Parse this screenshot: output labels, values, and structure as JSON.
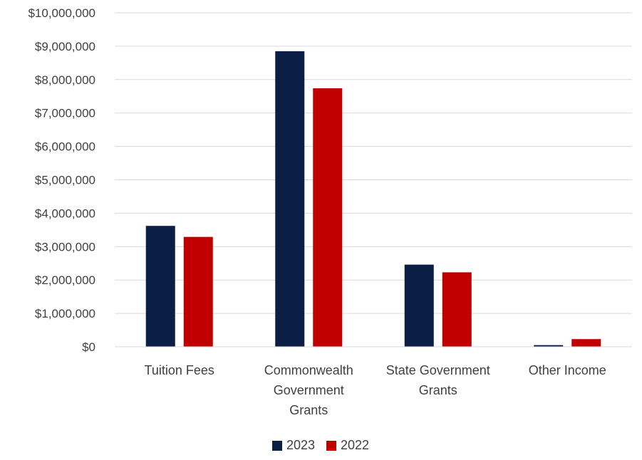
{
  "chart_data": {
    "type": "bar",
    "categories": [
      [
        "Tuition Fees"
      ],
      [
        "Commonwealth",
        "Government",
        "Grants"
      ],
      [
        "State Government",
        "Grants"
      ],
      [
        "Other Income"
      ]
    ],
    "series": [
      {
        "name": "2023",
        "color": "#0b1f45",
        "values": [
          3620000,
          8850000,
          2460000,
          50000
        ]
      },
      {
        "name": "2022",
        "color": "#c00000",
        "values": [
          3290000,
          7740000,
          2230000,
          230000
        ]
      }
    ],
    "ylim": [
      0,
      10000000
    ],
    "yticks": [
      0,
      1000000,
      2000000,
      3000000,
      4000000,
      5000000,
      6000000,
      7000000,
      8000000,
      9000000,
      10000000
    ],
    "ytick_labels": [
      "$0",
      "$1,000,000",
      "$2,000,000",
      "$3,000,000",
      "$4,000,000",
      "$5,000,000",
      "$6,000,000",
      "$7,000,000",
      "$8,000,000",
      "$9,000,000",
      "$10,000,000"
    ],
    "grid": true,
    "legend": "bottom-center",
    "title": "",
    "xlabel": "",
    "ylabel": ""
  }
}
